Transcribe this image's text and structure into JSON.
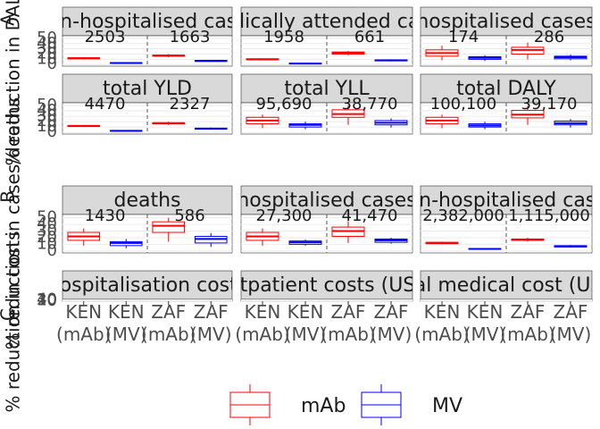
{
  "tags": [
    "A",
    "B",
    "C"
  ],
  "ylabels": [
    "% reduction in DALYs",
    "% reduction in cases/deaths",
    "% reduction in costs"
  ],
  "chart_data": [
    {
      "type": "box",
      "title": "non-hospitalised cases",
      "annotations": [
        "2503",
        "1663"
      ],
      "categories": [
        "KEN (mAb)",
        "KEN (MV)",
        "ZAF (mAb)",
        "ZAF (MV)"
      ],
      "ylim": [
        -3,
        55
      ],
      "yticks": [
        0,
        10,
        20,
        30,
        40,
        50
      ],
      "series": [
        {
          "name": "mAb",
          "color": "#ff0000",
          "boxes": [
            {
              "min": 10,
              "q1": 11,
              "median": 12,
              "q3": 13,
              "max": 14
            },
            {
              "min": 14,
              "q1": 16,
              "median": 17,
              "q3": 18,
              "max": 20
            }
          ]
        },
        {
          "name": "MV",
          "color": "#0000ff",
          "boxes": [
            {
              "min": 2,
              "q1": 2.5,
              "median": 3,
              "q3": 3.5,
              "max": 4
            },
            {
              "min": 5,
              "q1": 6,
              "median": 7,
              "q3": 8,
              "max": 9
            }
          ]
        }
      ]
    },
    {
      "type": "box",
      "title": "medically attended cases",
      "annotations": [
        "1958",
        "661"
      ],
      "categories": [
        "KEN (mAb)",
        "KEN (MV)",
        "ZAF (mAb)",
        "ZAF (MV)"
      ],
      "ylim": [
        -3,
        55
      ],
      "yticks": [
        0,
        10,
        20,
        30,
        40,
        50
      ],
      "series": [
        {
          "name": "mAb",
          "color": "#ff0000",
          "boxes": [
            {
              "min": 8,
              "q1": 9,
              "median": 10,
              "q3": 11,
              "max": 12
            },
            {
              "min": 18,
              "q1": 20,
              "median": 22,
              "q3": 24,
              "max": 26
            }
          ]
        },
        {
          "name": "MV",
          "color": "#0000ff",
          "boxes": [
            {
              "min": 1,
              "q1": 1.5,
              "median": 2,
              "q3": 2.5,
              "max": 3
            },
            {
              "min": 6,
              "q1": 7,
              "median": 8,
              "q3": 9,
              "max": 10
            }
          ]
        }
      ]
    },
    {
      "type": "box",
      "title": "hospitalised cases",
      "annotations": [
        "174",
        "286"
      ],
      "categories": [
        "KEN (mAb)",
        "KEN (MV)",
        "ZAF (mAb)",
        "ZAF (MV)"
      ],
      "ylim": [
        -3,
        55
      ],
      "yticks": [
        0,
        10,
        20,
        30,
        40,
        50
      ],
      "series": [
        {
          "name": "mAb",
          "color": "#ff0000",
          "boxes": [
            {
              "min": 8,
              "q1": 16,
              "median": 22,
              "q3": 28,
              "max": 36
            },
            {
              "min": 10,
              "q1": 20,
              "median": 28,
              "q3": 33,
              "max": 42
            }
          ]
        },
        {
          "name": "MV",
          "color": "#0000ff",
          "boxes": [
            {
              "min": 7,
              "q1": 10,
              "median": 13,
              "q3": 15,
              "max": 18
            },
            {
              "min": 8,
              "q1": 11,
              "median": 14,
              "q3": 16,
              "max": 19
            }
          ]
        }
      ]
    },
    {
      "type": "box",
      "title": "total YLD",
      "annotations": [
        "4470",
        "2327"
      ],
      "categories": [
        "KEN (mAb)",
        "KEN (MV)",
        "ZAF (mAb)",
        "ZAF (MV)"
      ],
      "ylim": [
        -3,
        55
      ],
      "yticks": [
        0,
        10,
        20,
        30,
        40,
        50
      ],
      "series": [
        {
          "name": "mAb",
          "color": "#ff0000",
          "boxes": [
            {
              "min": 10,
              "q1": 11,
              "median": 12,
              "q3": 13,
              "max": 14
            },
            {
              "min": 14,
              "q1": 16,
              "median": 17,
              "q3": 18,
              "max": 20
            }
          ]
        },
        {
          "name": "MV",
          "color": "#0000ff",
          "boxes": [
            {
              "min": 2,
              "q1": 2.5,
              "median": 3,
              "q3": 3.5,
              "max": 4
            },
            {
              "min": 5,
              "q1": 6,
              "median": 7,
              "q3": 8,
              "max": 9
            }
          ]
        }
      ]
    },
    {
      "type": "box",
      "title": "total YLL",
      "annotations": [
        "95,690",
        "38,770"
      ],
      "categories": [
        "KEN (mAb)",
        "KEN (MV)",
        "ZAF (mAb)",
        "ZAF (MV)"
      ],
      "ylim": [
        -3,
        55
      ],
      "yticks": [
        0,
        10,
        20,
        30,
        40,
        50
      ],
      "series": [
        {
          "name": "mAb",
          "color": "#ff0000",
          "boxes": [
            {
              "min": 8,
              "q1": 16,
              "median": 22,
              "q3": 28,
              "max": 33
            },
            {
              "min": 14,
              "q1": 28,
              "median": 34,
              "q3": 42,
              "max": 50
            }
          ]
        },
        {
          "name": "MV",
          "color": "#0000ff",
          "boxes": [
            {
              "min": 6,
              "q1": 10,
              "median": 14,
              "q3": 16,
              "max": 20
            },
            {
              "min": 9,
              "q1": 14,
              "median": 18,
              "q3": 22,
              "max": 26
            }
          ]
        }
      ]
    },
    {
      "type": "box",
      "title": "total DALY",
      "annotations": [
        "100,100",
        "39,170"
      ],
      "categories": [
        "KEN (mAb)",
        "KEN (MV)",
        "ZAF (mAb)",
        "ZAF (MV)"
      ],
      "ylim": [
        -3,
        55
      ],
      "yticks": [
        0,
        10,
        20,
        30,
        40,
        50
      ],
      "series": [
        {
          "name": "mAb",
          "color": "#ff0000",
          "boxes": [
            {
              "min": 8,
              "q1": 16,
              "median": 22,
              "q3": 28,
              "max": 33
            },
            {
              "min": 14,
              "q1": 27,
              "median": 33,
              "q3": 41,
              "max": 49
            }
          ]
        },
        {
          "name": "MV",
          "color": "#0000ff",
          "boxes": [
            {
              "min": 6,
              "q1": 10,
              "median": 13,
              "q3": 16,
              "max": 20
            },
            {
              "min": 9,
              "q1": 14,
              "median": 17,
              "q3": 21,
              "max": 25
            }
          ]
        }
      ]
    },
    {
      "type": "box",
      "title": "deaths",
      "annotations": [
        "1430",
        "586"
      ],
      "categories": [
        "KEN (mAb)",
        "KEN (MV)",
        "ZAF (mAb)",
        "ZAF (MV)"
      ],
      "ylim": [
        -3,
        55
      ],
      "yticks": [
        0,
        10,
        20,
        30,
        40,
        50
      ],
      "series": [
        {
          "name": "mAb",
          "color": "#ff0000",
          "boxes": [
            {
              "min": 8,
              "q1": 16,
              "median": 22,
              "q3": 28,
              "max": 34
            },
            {
              "min": 14,
              "q1": 28,
              "median": 38,
              "q3": 44,
              "max": 50
            }
          ]
        },
        {
          "name": "MV",
          "color": "#0000ff",
          "boxes": [
            {
              "min": 4,
              "q1": 8,
              "median": 12,
              "q3": 14,
              "max": 18
            },
            {
              "min": 6,
              "q1": 12,
              "median": 18,
              "q3": 22,
              "max": 27
            }
          ]
        }
      ]
    },
    {
      "type": "box",
      "title": "hospitalised cases",
      "annotations": [
        "27,300",
        "41,470"
      ],
      "categories": [
        "KEN (mAb)",
        "KEN (MV)",
        "ZAF (mAb)",
        "ZAF (MV)"
      ],
      "ylim": [
        -3,
        55
      ],
      "yticks": [
        0,
        10,
        20,
        30,
        40,
        50
      ],
      "series": [
        {
          "name": "mAb",
          "color": "#ff0000",
          "boxes": [
            {
              "min": 8,
              "q1": 16,
              "median": 22,
              "q3": 28,
              "max": 34
            },
            {
              "min": 12,
              "q1": 22,
              "median": 30,
              "q3": 36,
              "max": 45
            }
          ]
        },
        {
          "name": "MV",
          "color": "#0000ff",
          "boxes": [
            {
              "min": 8,
              "q1": 10,
              "median": 13,
              "q3": 15,
              "max": 17
            },
            {
              "min": 11,
              "q1": 13,
              "median": 16,
              "q3": 18,
              "max": 20
            }
          ]
        }
      ]
    },
    {
      "type": "box",
      "title": "non-hospitalised cases",
      "annotations": [
        "2,382,000",
        "1,115,000"
      ],
      "categories": [
        "KEN (mAb)",
        "KEN (MV)",
        "ZAF (mAb)",
        "ZAF (MV)"
      ],
      "ylim": [
        -3,
        55
      ],
      "yticks": [
        0,
        10,
        20,
        30,
        40,
        50
      ],
      "series": [
        {
          "name": "mAb",
          "color": "#ff0000",
          "boxes": [
            {
              "min": 10,
              "q1": 11,
              "median": 12,
              "q3": 13,
              "max": 14
            },
            {
              "min": 14,
              "q1": 16,
              "median": 17,
              "q3": 18,
              "max": 20
            }
          ]
        },
        {
          "name": "MV",
          "color": "#0000ff",
          "boxes": [
            {
              "min": 2,
              "q1": 2.5,
              "median": 3,
              "q3": 3.5,
              "max": 4
            },
            {
              "min": 5,
              "q1": 6,
              "median": 7,
              "q3": 8,
              "max": 9
            }
          ]
        }
      ]
    },
    {
      "type": "empty",
      "title": "hospitalisation costs",
      "categories": [
        "KEN (mAb)",
        "KEN (MV)",
        "ZAF (mAb)",
        "ZAF (MV)"
      ],
      "ylim": [
        -3,
        55
      ],
      "yticks": [
        0,
        10,
        20,
        30,
        40
      ]
    },
    {
      "type": "empty",
      "title": "outpatient costs (USD)",
      "categories": [
        "KEN (mAb)",
        "KEN (MV)",
        "ZAF (mAb)",
        "ZAF (MV)"
      ],
      "ylim": [
        -3,
        55
      ],
      "yticks": [
        0,
        10,
        20,
        30,
        40
      ]
    },
    {
      "type": "empty",
      "title": "total medical cost (USD)",
      "categories": [
        "KEN (mAb)",
        "KEN (MV)",
        "ZAF (mAb)",
        "ZAF (MV)"
      ],
      "ylim": [
        -3,
        55
      ],
      "yticks": [
        0,
        10,
        20,
        30,
        40
      ]
    }
  ]
}
